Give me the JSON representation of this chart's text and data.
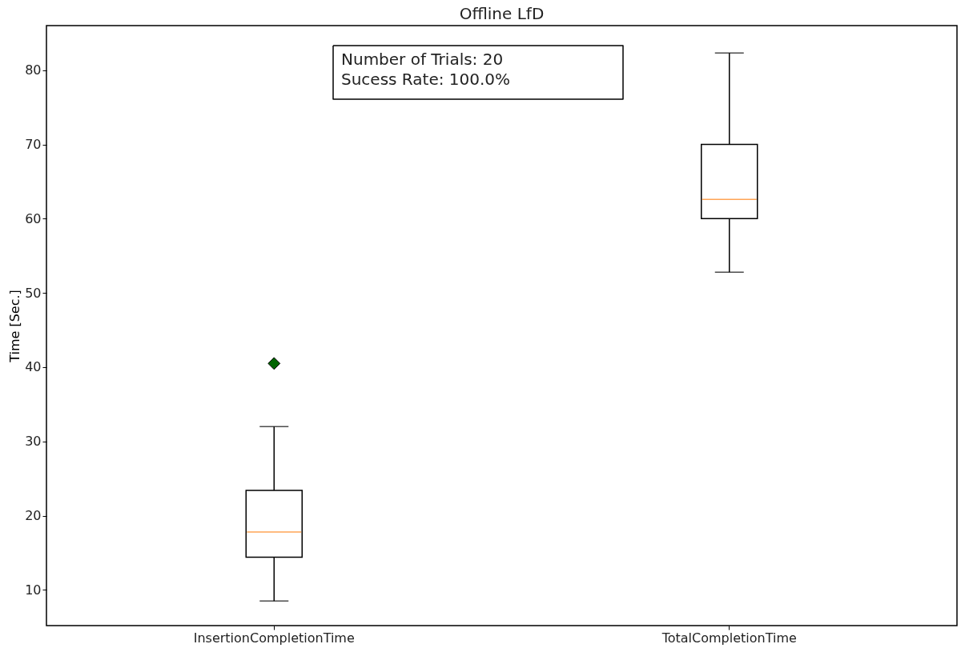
{
  "chart_data": {
    "type": "box",
    "title": "Offline LfD",
    "ylabel": "Time [Sec.]",
    "categories": [
      "InsertionCompletionTime",
      "TotalCompletionTime"
    ],
    "boxes": [
      {
        "low": 8.5,
        "q1": 14.4,
        "median": 17.8,
        "q3": 23.4,
        "high": 32.0,
        "outliers": [
          40.5
        ]
      },
      {
        "low": 52.8,
        "q1": 60.0,
        "median": 62.6,
        "q3": 70.0,
        "high": 82.3
      }
    ],
    "ylim": [
      5.2,
      86.0
    ],
    "yticks": [
      10,
      20,
      30,
      40,
      50,
      60,
      70,
      80
    ],
    "grid": false,
    "annotations": [
      "Number of Trials: 20\nSucess Rate: 100.0%"
    ]
  }
}
